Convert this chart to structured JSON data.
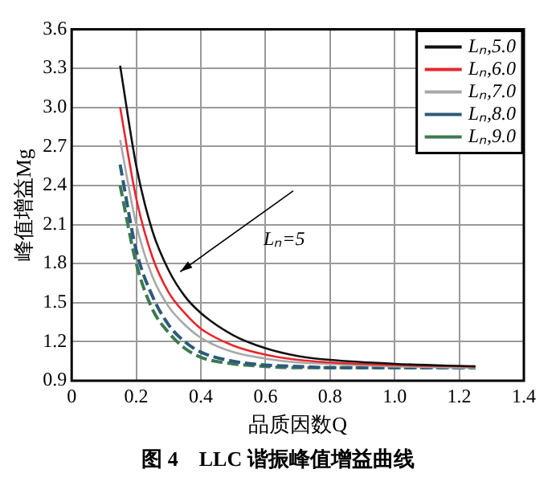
{
  "chart_data": {
    "type": "line",
    "title": "图 4　LLC 谐振峰值增益曲线",
    "xlabel": "品质因数Q",
    "ylabel": "峰值增益Mg",
    "xlim": [
      0,
      1.4
    ],
    "xticks": [
      {
        "value": 0,
        "label": "0"
      },
      0.2,
      0.4,
      0.6,
      0.8,
      {
        "value": 1,
        "label": "1.0"
      },
      1.2,
      1.4
    ],
    "ylim": [
      0.9,
      3.6
    ],
    "yticks": [
      0.9,
      1.2,
      1.5,
      1.8,
      2.1,
      2.4,
      2.7,
      {
        "value": 3,
        "label": "3.0"
      },
      3.3,
      3.6
    ],
    "x": [
      0.15,
      0.2,
      0.25,
      0.3,
      0.35,
      0.4,
      0.5,
      0.6,
      0.7,
      0.8,
      1.0,
      1.25
    ],
    "series": [
      {
        "name": "Lₙ,5.0",
        "color": "#111111",
        "line_style": "solid",
        "values": [
          3.32,
          2.55,
          2.05,
          1.75,
          1.55,
          1.42,
          1.25,
          1.15,
          1.09,
          1.06,
          1.03,
          1.01
        ]
      },
      {
        "name": "Lₙ,6.0",
        "color": "#e8262b",
        "line_style": "solid",
        "values": [
          3.0,
          2.3,
          1.85,
          1.58,
          1.42,
          1.3,
          1.17,
          1.1,
          1.06,
          1.04,
          1.02,
          1.01
        ]
      },
      {
        "name": "Lₙ,7.0",
        "color": "#a8a8a8",
        "line_style": "solid",
        "values": [
          2.75,
          2.1,
          1.7,
          1.47,
          1.33,
          1.23,
          1.12,
          1.07,
          1.04,
          1.03,
          1.01,
          1.0
        ]
      },
      {
        "name": "Lₙ,8.0",
        "color": "#2d5a7a",
        "line_style": "dashed",
        "values": [
          2.56,
          1.9,
          1.55,
          1.33,
          1.2,
          1.12,
          1.05,
          1.02,
          1.01,
          1.0,
          1.0,
          1.0
        ]
      },
      {
        "name": "Lₙ,9.0",
        "color": "#3d7a4e",
        "line_style": "dashed",
        "values": [
          2.4,
          1.8,
          1.45,
          1.27,
          1.15,
          1.08,
          1.03,
          1.01,
          1.0,
          1.0,
          1.0,
          1.0
        ]
      }
    ],
    "annotations": [
      "Lₙ=5"
    ],
    "grid": true,
    "legend": "top right"
  }
}
